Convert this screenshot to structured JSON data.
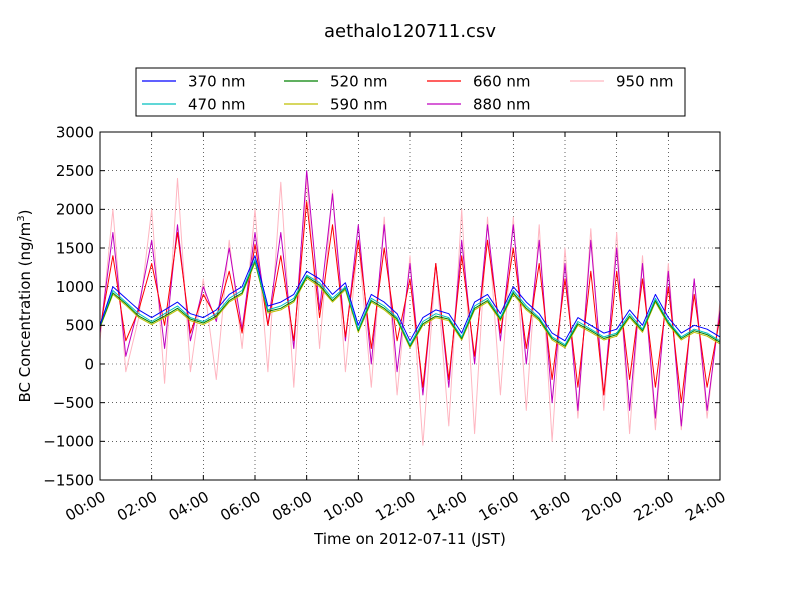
{
  "chart_data": {
    "type": "line",
    "title": "aethalo120711.csv",
    "xlabel": "Time on 2012-07-11 (JST)",
    "ylabel": "BC Concentration (ng/m",
    "ylabel_sup": "3",
    "ylabel_tail": ")",
    "x_unit": "hours",
    "xlim": [
      0,
      24
    ],
    "ylim": [
      -1500,
      3000
    ],
    "x_ticks": [
      0,
      2,
      4,
      6,
      8,
      10,
      12,
      14,
      16,
      18,
      20,
      22,
      24
    ],
    "x_tick_labels": [
      "00:00",
      "02:00",
      "04:00",
      "06:00",
      "08:00",
      "10:00",
      "12:00",
      "14:00",
      "16:00",
      "18:00",
      "20:00",
      "22:00",
      "24:00"
    ],
    "y_ticks": [
      -1500,
      -1000,
      -500,
      0,
      500,
      1000,
      1500,
      2000,
      2500,
      3000
    ],
    "y_tick_labels": [
      "−1500",
      "−1000",
      "−500",
      "0",
      "500",
      "1000",
      "1500",
      "2000",
      "2500",
      "3000"
    ],
    "grid": true,
    "legend_position": "top",
    "x": [
      0,
      0.5,
      1,
      1.5,
      2,
      2.5,
      3,
      3.5,
      4,
      4.5,
      5,
      5.5,
      6,
      6.5,
      7,
      7.5,
      8,
      8.5,
      9,
      9.5,
      10,
      10.5,
      11,
      11.5,
      12,
      12.5,
      13,
      13.5,
      14,
      14.5,
      15,
      15.5,
      16,
      16.5,
      17,
      17.5,
      18,
      18.5,
      19,
      19.5,
      20,
      20.5,
      21,
      21.5,
      22,
      22.5,
      23,
      23.5,
      24
    ],
    "series": [
      {
        "name": "370 nm",
        "color": "#0000ff",
        "values": [
          500,
          1000,
          850,
          700,
          600,
          700,
          800,
          650,
          600,
          700,
          900,
          1000,
          1400,
          750,
          800,
          900,
          1200,
          1100,
          900,
          1050,
          500,
          900,
          800,
          650,
          300,
          600,
          700,
          650,
          400,
          800,
          900,
          650,
          1000,
          800,
          650,
          400,
          300,
          600,
          500,
          400,
          450,
          700,
          500,
          900,
          600,
          400,
          500,
          450,
          350
        ]
      },
      {
        "name": "470 nm",
        "color": "#00bfbf",
        "values": [
          500,
          950,
          800,
          650,
          550,
          650,
          750,
          600,
          550,
          650,
          850,
          950,
          1350,
          700,
          750,
          850,
          1150,
          1050,
          850,
          1000,
          450,
          850,
          750,
          600,
          250,
          550,
          650,
          600,
          350,
          750,
          850,
          600,
          950,
          750,
          600,
          350,
          250,
          550,
          450,
          350,
          400,
          650,
          450,
          850,
          550,
          350,
          450,
          400,
          300
        ]
      },
      {
        "name": "520 nm",
        "color": "#008000",
        "values": [
          480,
          920,
          780,
          620,
          530,
          620,
          720,
          580,
          530,
          620,
          820,
          920,
          1330,
          680,
          720,
          820,
          1130,
          1020,
          820,
          980,
          430,
          820,
          720,
          580,
          230,
          520,
          620,
          580,
          330,
          720,
          820,
          580,
          920,
          720,
          580,
          330,
          230,
          520,
          430,
          330,
          380,
          620,
          430,
          820,
          530,
          330,
          430,
          380,
          280
        ]
      },
      {
        "name": "590 nm",
        "color": "#bfbf00",
        "values": [
          470,
          900,
          760,
          600,
          510,
          600,
          700,
          560,
          510,
          600,
          800,
          900,
          1310,
          660,
          700,
          800,
          1110,
          1000,
          800,
          960,
          410,
          800,
          700,
          560,
          210,
          500,
          600,
          560,
          310,
          700,
          800,
          560,
          900,
          700,
          560,
          310,
          210,
          500,
          410,
          310,
          360,
          600,
          410,
          800,
          510,
          310,
          410,
          360,
          260
        ]
      },
      {
        "name": "660 nm",
        "color": "#ff0000",
        "values": [
          450,
          1400,
          300,
          700,
          1300,
          500,
          1700,
          400,
          900,
          600,
          1200,
          400,
          1550,
          500,
          1400,
          300,
          2100,
          600,
          1800,
          350,
          1600,
          200,
          1500,
          300,
          1100,
          -300,
          1300,
          -200,
          1400,
          100,
          1600,
          400,
          1500,
          200,
          1300,
          -200,
          1100,
          -300,
          1200,
          -400,
          1200,
          -200,
          1100,
          -300,
          1000,
          -500,
          900,
          -300,
          600
        ]
      },
      {
        "name": "880 nm",
        "color": "#bf00bf",
        "values": [
          400,
          1700,
          100,
          750,
          1600,
          200,
          1800,
          300,
          1000,
          550,
          1500,
          450,
          1700,
          500,
          1700,
          200,
          2500,
          700,
          2200,
          300,
          1800,
          0,
          1800,
          -100,
          1300,
          -400,
          1300,
          -300,
          1600,
          0,
          1800,
          300,
          1800,
          0,
          1600,
          -500,
          1300,
          -600,
          1600,
          -400,
          1500,
          -600,
          1300,
          -700,
          1200,
          -800,
          1100,
          -600,
          700
        ]
      },
      {
        "name": "950 nm",
        "color": "#ffb6c1",
        "values": [
          300,
          2000,
          -100,
          600,
          2000,
          -250,
          2400,
          -100,
          1100,
          -200,
          1600,
          200,
          2000,
          -100,
          2350,
          -300,
          2400,
          200,
          2250,
          -100,
          1600,
          -300,
          1900,
          -400,
          1400,
          -1050,
          1300,
          -800,
          2000,
          -900,
          1900,
          -400,
          1900,
          -600,
          1800,
          -1000,
          1500,
          -700,
          1750,
          -600,
          1700,
          -900,
          1400,
          -850,
          1300,
          -850,
          1100,
          -700,
          800
        ]
      }
    ]
  }
}
